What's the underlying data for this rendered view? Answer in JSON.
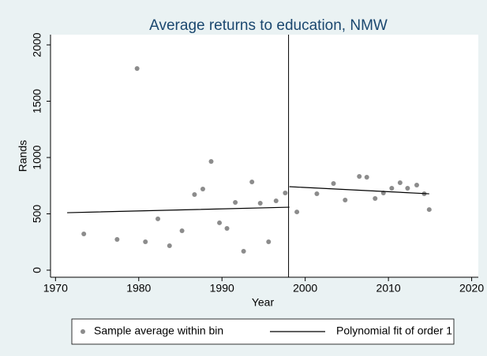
{
  "chart_data": {
    "type": "scatter",
    "title": "Average returns to education, NMW",
    "x_label": "Year",
    "y_label": "Rands",
    "xlim": [
      1969.4,
      2020.8
    ],
    "ylim": [
      -63,
      2091
    ],
    "xticks": [
      1970,
      1980,
      1990,
      2000,
      2010,
      2020
    ],
    "yticks": [
      0,
      500,
      1000,
      1500,
      2000
    ],
    "xline": 1998,
    "series": [
      {
        "name": "Sample average within bin",
        "kind": "points",
        "color": "#8c8c8c",
        "x": [
          1973.4,
          1977.4,
          1979.8,
          1980.8,
          1982.3,
          1983.7,
          1985.2,
          1986.7,
          1987.7,
          1988.7,
          1989.7,
          1990.6,
          1991.6,
          1992.6,
          1993.6,
          1994.6,
          1995.6,
          1996.5,
          1997.6,
          1999.0,
          2001.4,
          2003.4,
          2004.8,
          2006.5,
          2007.4,
          2008.4,
          2009.4,
          2010.4,
          2011.4,
          2012.3,
          2013.4,
          2014.3,
          2014.9
        ],
        "values": [
          322,
          273,
          1790,
          252,
          455,
          217,
          350,
          671,
          720,
          965,
          420,
          371,
          601,
          168,
          783,
          594,
          252,
          615,
          685,
          517,
          678,
          769,
          622,
          832,
          825,
          636,
          685,
          727,
          776,
          727,
          755,
          678,
          538
        ]
      },
      {
        "name": "Polynomial fit of order 1",
        "kind": "line",
        "color": "#000000",
        "x": [
          1971.4,
          1998.1,
          null,
          1998.1,
          2014.9
        ],
        "values": [
          510,
          559,
          null,
          741,
          678
        ]
      }
    ]
  }
}
